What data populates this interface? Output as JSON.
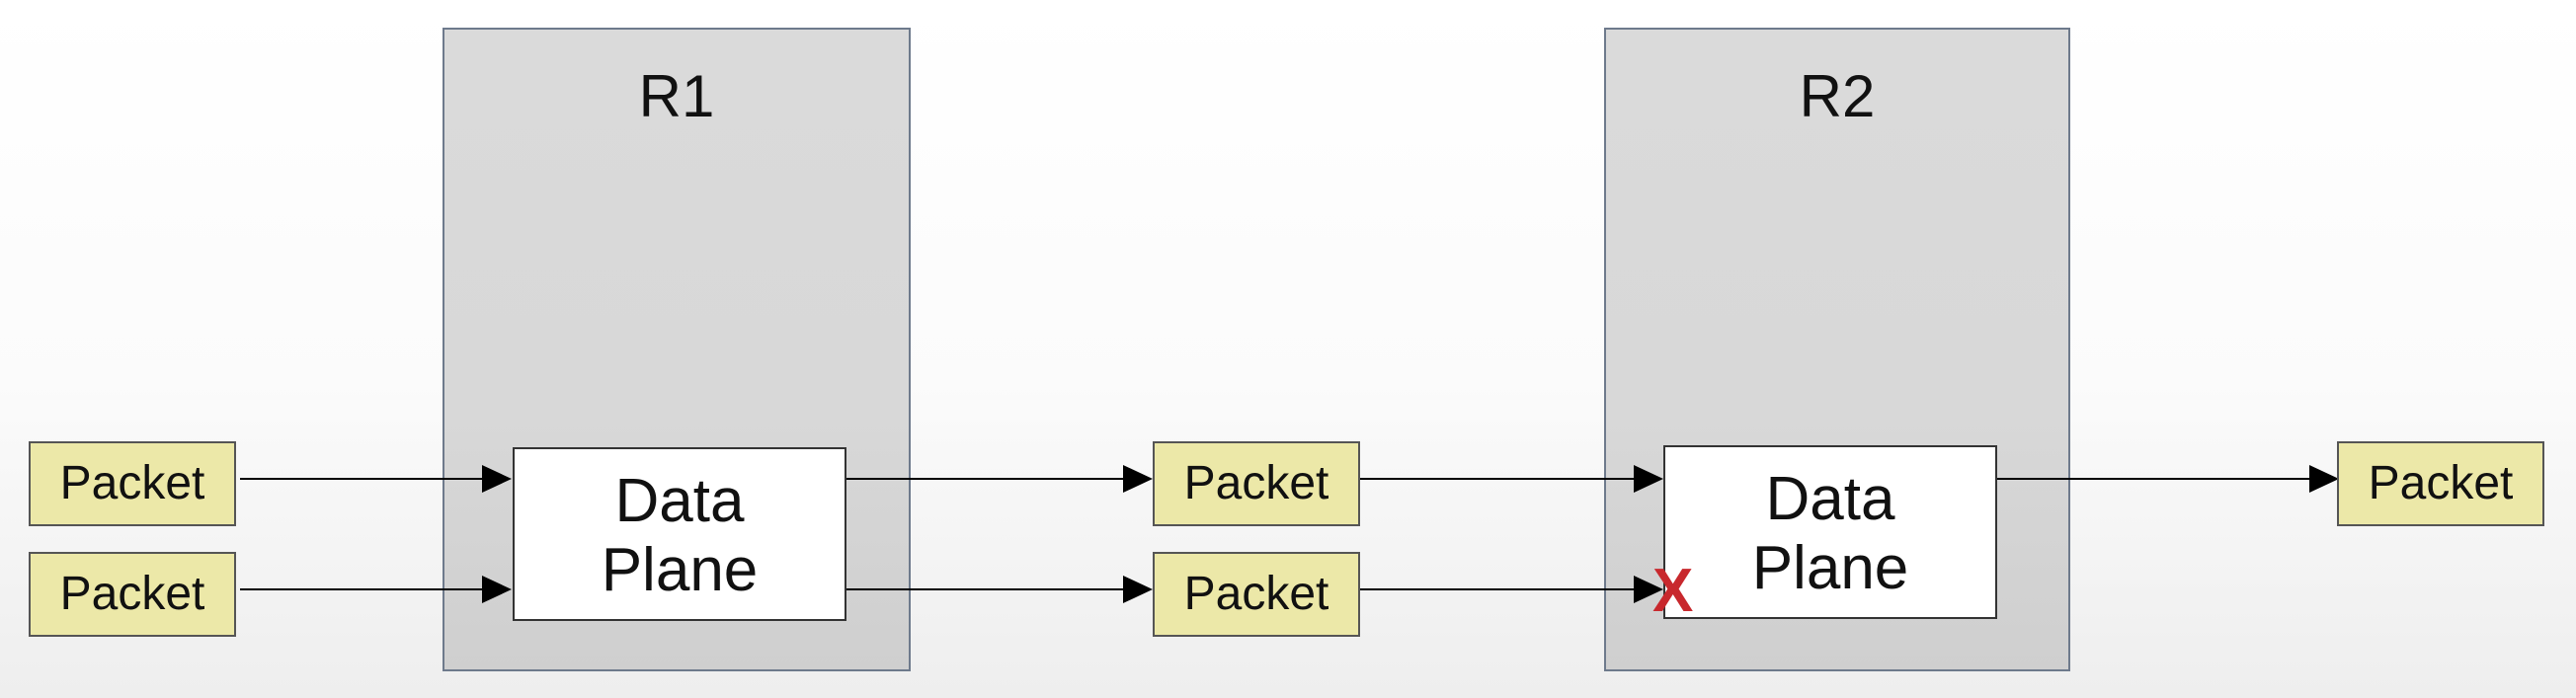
{
  "routers": [
    {
      "name": "R1",
      "plane_line1": "Data",
      "plane_line2": "Plane"
    },
    {
      "name": "R2",
      "plane_line1": "Data",
      "plane_line2": "Plane"
    }
  ],
  "packets": {
    "in_top": "Packet",
    "in_bottom": "Packet",
    "mid_top": "Packet",
    "mid_bottom": "Packet",
    "out_top": "Packet"
  },
  "drop_marker": {
    "symbol": "X",
    "color": "#c8282d"
  },
  "colors": {
    "packet_fill": "#ece8a8",
    "router_fill": "#d8d8d8",
    "router_border": "#6e7a8c",
    "arrow": "#000000"
  }
}
